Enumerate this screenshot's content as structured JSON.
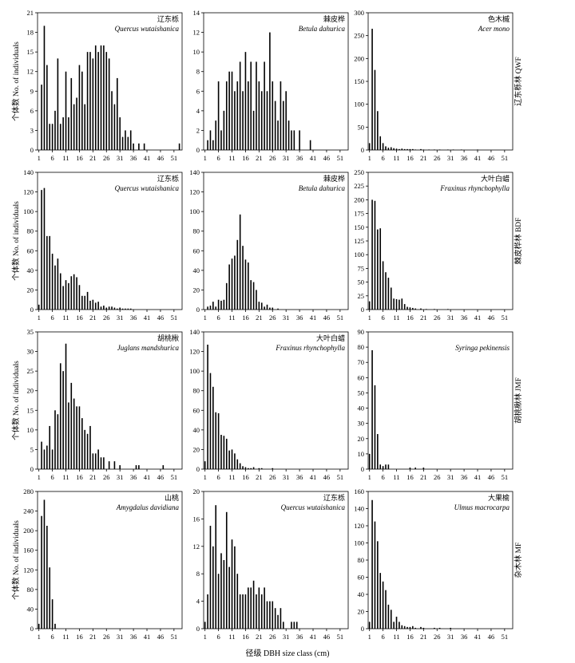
{
  "figure": {
    "xlabel": "径级  DBH size class (cm)",
    "ylabel": "个体数  No. of individuals",
    "x_ticks": [
      "1",
      "6",
      "11",
      "16",
      "21",
      "26",
      "31",
      "36",
      "41",
      "46",
      "51"
    ]
  },
  "row_labels": [
    "辽东栎林  QWF",
    "棘皮桦林  BDF",
    "胡桃楸林  JMF",
    "杂木林  MF"
  ],
  "chart_data": [
    {
      "type": "bar",
      "row": 0,
      "col": 0,
      "name_cn": "辽东栎",
      "name_latin": "Quercus wutaishanica",
      "ymax": 21,
      "yticks": [
        0,
        3,
        6,
        9,
        12,
        15,
        18,
        21
      ],
      "x": [
        2,
        3,
        4,
        5,
        6,
        7,
        8,
        9,
        10,
        11,
        12,
        13,
        14,
        15,
        16,
        17,
        18,
        19,
        20,
        21,
        22,
        23,
        24,
        25,
        26,
        27,
        28,
        29,
        30,
        31,
        32,
        33,
        34,
        35,
        36,
        38,
        40,
        53
      ],
      "values": [
        10,
        19,
        13,
        4,
        4,
        6,
        14,
        4,
        5,
        12,
        5,
        11,
        7,
        8,
        13,
        12,
        7,
        15,
        15,
        14,
        16,
        15,
        16,
        16,
        15,
        14,
        9,
        7,
        11,
        5,
        2,
        3,
        2,
        3,
        1,
        1,
        1,
        1
      ]
    },
    {
      "type": "bar",
      "row": 0,
      "col": 1,
      "name_cn": "棘皮桦",
      "name_latin": "Betula dahurica",
      "ymax": 14,
      "yticks": [
        0,
        2,
        4,
        6,
        8,
        10,
        12,
        14
      ],
      "x": [
        2,
        3,
        4,
        5,
        6,
        7,
        8,
        9,
        10,
        11,
        12,
        13,
        14,
        15,
        16,
        17,
        18,
        19,
        20,
        21,
        22,
        23,
        24,
        25,
        26,
        27,
        28,
        29,
        30,
        31,
        32,
        33,
        34,
        36,
        40
      ],
      "values": [
        1,
        2,
        1,
        3,
        7,
        2,
        4,
        7,
        8,
        8,
        6,
        7,
        9,
        6,
        10,
        7,
        9,
        4,
        9,
        7,
        6,
        9,
        6,
        12,
        7,
        5,
        3,
        7,
        5,
        6,
        3,
        2,
        2,
        2,
        1
      ]
    },
    {
      "type": "bar",
      "row": 0,
      "col": 2,
      "name_cn": "色木槭",
      "name_latin": "Acer mono",
      "ymax": 300,
      "yticks": [
        0,
        50,
        100,
        150,
        200,
        250,
        300
      ],
      "x": [
        1,
        2,
        3,
        4,
        5,
        6,
        7,
        8,
        9,
        10,
        11,
        12,
        13,
        14,
        15,
        16,
        17,
        18,
        20,
        21,
        23,
        25,
        27,
        30,
        32,
        35,
        41
      ],
      "values": [
        15,
        265,
        175,
        85,
        30,
        15,
        8,
        5,
        6,
        4,
        3,
        2,
        3,
        2,
        2,
        2,
        2,
        1,
        2,
        1,
        1,
        1,
        1,
        1,
        1,
        1,
        1
      ]
    },
    {
      "type": "bar",
      "row": 1,
      "col": 0,
      "name_cn": "辽东栎",
      "name_latin": "Quercus wutaishanica",
      "ymax": 140,
      "yticks": [
        0,
        20,
        40,
        60,
        80,
        100,
        120,
        140
      ],
      "x": [
        1,
        2,
        3,
        4,
        5,
        6,
        7,
        8,
        9,
        10,
        11,
        12,
        13,
        14,
        15,
        16,
        17,
        18,
        19,
        20,
        21,
        22,
        23,
        24,
        25,
        26,
        27,
        28,
        29,
        30,
        31,
        32,
        33,
        34,
        35
      ],
      "values": [
        5,
        122,
        124,
        75,
        75,
        57,
        45,
        52,
        37,
        24,
        30,
        27,
        34,
        36,
        33,
        25,
        14,
        14,
        18,
        9,
        10,
        7,
        8,
        3,
        4,
        2,
        3,
        3,
        2,
        1,
        2,
        1,
        1,
        1,
        1
      ]
    },
    {
      "type": "bar",
      "row": 1,
      "col": 1,
      "name_cn": "棘皮桦",
      "name_latin": "Betula dahurica",
      "ymax": 140,
      "yticks": [
        0,
        20,
        40,
        60,
        80,
        100,
        120,
        140
      ],
      "x": [
        2,
        3,
        4,
        5,
        6,
        7,
        8,
        9,
        10,
        11,
        12,
        13,
        14,
        15,
        16,
        17,
        18,
        19,
        20,
        21,
        22,
        23,
        24,
        25,
        26,
        28
      ],
      "values": [
        3,
        4,
        8,
        3,
        10,
        9,
        10,
        27,
        46,
        52,
        55,
        71,
        97,
        65,
        51,
        48,
        30,
        28,
        20,
        8,
        7,
        3,
        5,
        2,
        2,
        1
      ]
    },
    {
      "type": "bar",
      "row": 1,
      "col": 2,
      "name_cn": "大叶白蜡",
      "name_latin": "Fraxinus rhynchophylla",
      "ymax": 250,
      "yticks": [
        0,
        25,
        50,
        75,
        100,
        125,
        150,
        175,
        200,
        225,
        250
      ],
      "x": [
        1,
        2,
        3,
        4,
        5,
        6,
        7,
        8,
        9,
        10,
        11,
        12,
        13,
        14,
        15,
        16,
        17,
        18,
        20,
        22,
        25,
        30
      ],
      "values": [
        15,
        200,
        198,
        146,
        148,
        88,
        68,
        58,
        40,
        20,
        19,
        18,
        20,
        10,
        5,
        4,
        3,
        2,
        2,
        1,
        1,
        1
      ]
    },
    {
      "type": "bar",
      "row": 2,
      "col": 0,
      "name_cn": "胡桃楸",
      "name_latin": "Juglans mandshurica",
      "ymax": 35,
      "yticks": [
        0,
        5,
        10,
        15,
        20,
        25,
        30,
        35
      ],
      "x": [
        2,
        3,
        4,
        5,
        6,
        7,
        8,
        9,
        10,
        11,
        12,
        13,
        14,
        15,
        16,
        17,
        18,
        19,
        20,
        21,
        22,
        23,
        24,
        25,
        27,
        29,
        31,
        37,
        38,
        47
      ],
      "values": [
        7,
        5,
        6,
        11,
        5,
        15,
        14,
        27,
        25,
        32,
        17,
        22,
        18,
        16,
        16,
        13,
        10,
        9,
        11,
        4,
        4,
        5,
        3,
        3,
        2,
        2,
        1,
        1,
        1,
        1
      ]
    },
    {
      "type": "bar",
      "row": 2,
      "col": 1,
      "name_cn": "大叶白蜡",
      "name_latin": "Fraxinus rhynchophylla",
      "ymax": 140,
      "yticks": [
        0,
        20,
        40,
        60,
        80,
        100,
        120,
        140
      ],
      "x": [
        1,
        2,
        3,
        4,
        5,
        6,
        7,
        8,
        9,
        10,
        11,
        12,
        13,
        14,
        15,
        16,
        17,
        18,
        19,
        21,
        22,
        26
      ],
      "values": [
        8,
        127,
        98,
        84,
        58,
        57,
        35,
        34,
        31,
        19,
        20,
        16,
        10,
        6,
        3,
        2,
        1,
        1,
        2,
        1,
        1,
        1
      ]
    },
    {
      "type": "bar",
      "row": 2,
      "col": 2,
      "name_cn": "",
      "name_latin": "Syringa pekinensis",
      "ymax": 90,
      "yticks": [
        0,
        10,
        20,
        30,
        40,
        50,
        60,
        70,
        80,
        90
      ],
      "x": [
        1,
        2,
        3,
        4,
        5,
        6,
        7,
        8,
        16,
        18,
        21
      ],
      "values": [
        10,
        78,
        55,
        23,
        3,
        2,
        3,
        3,
        1,
        1,
        1
      ]
    },
    {
      "type": "bar",
      "row": 3,
      "col": 0,
      "name_cn": "山桃",
      "name_latin": "Amygdalus davidiana",
      "ymax": 280,
      "yticks": [
        0,
        40,
        80,
        120,
        160,
        200,
        240,
        280
      ],
      "x": [
        1,
        2,
        3,
        4,
        5,
        6,
        7
      ],
      "values": [
        10,
        230,
        263,
        210,
        125,
        60,
        10
      ]
    },
    {
      "type": "bar",
      "row": 3,
      "col": 1,
      "name_cn": "辽东栎",
      "name_latin": "Quercus wutaishanica",
      "ymax": 20,
      "yticks": [
        0,
        4,
        8,
        12,
        16,
        20
      ],
      "x": [
        1,
        2,
        3,
        4,
        5,
        6,
        7,
        8,
        9,
        10,
        11,
        12,
        13,
        14,
        15,
        16,
        17,
        18,
        19,
        20,
        21,
        22,
        23,
        24,
        25,
        26,
        27,
        28,
        29,
        30,
        33,
        34,
        35
      ],
      "values": [
        1,
        5,
        15,
        12,
        18,
        8,
        11,
        10,
        17,
        9,
        13,
        12,
        8,
        5,
        5,
        5,
        6,
        6,
        7,
        5,
        6,
        5,
        6,
        4,
        4,
        4,
        3,
        2,
        3,
        1,
        1,
        1,
        1
      ]
    },
    {
      "type": "bar",
      "row": 3,
      "col": 2,
      "name_cn": "大果榆",
      "name_latin": "Ulmus macrocarpa",
      "ymax": 160,
      "yticks": [
        0,
        20,
        40,
        60,
        80,
        100,
        120,
        140,
        160
      ],
      "x": [
        1,
        2,
        3,
        4,
        5,
        6,
        7,
        8,
        9,
        10,
        11,
        12,
        13,
        14,
        15,
        16,
        17,
        18,
        20,
        21,
        25,
        27,
        31
      ],
      "values": [
        8,
        150,
        125,
        102,
        65,
        55,
        45,
        28,
        22,
        8,
        14,
        8,
        4,
        3,
        2,
        2,
        3,
        1,
        2,
        1,
        1,
        1,
        1
      ]
    }
  ]
}
